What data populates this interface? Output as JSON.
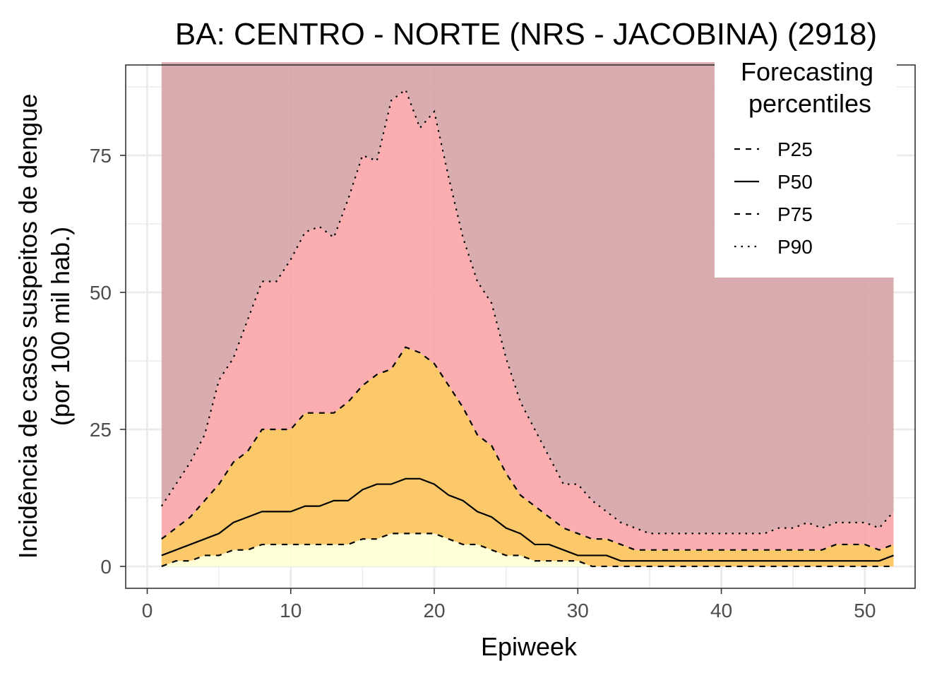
{
  "chart_data": {
    "type": "area",
    "title": "BA: CENTRO - NORTE (NRS - JACOBINA) (2918)",
    "xlabel": "Epiweek",
    "ylabel_line1": "Incidência de casos suspeitos de dengue",
    "ylabel_line2": "(por 100 mil hab.)",
    "xlim": [
      -1.5,
      53.5
    ],
    "ylim": [
      -4,
      91.5
    ],
    "x_ticks": [
      0,
      10,
      20,
      30,
      40,
      50
    ],
    "y_ticks": [
      0,
      25,
      50,
      75
    ],
    "grid": true,
    "legend": {
      "title_line1": "Forecasting",
      "title_line2": "percentiles",
      "position": "top-right",
      "entries": [
        "P25",
        "P50",
        "P75",
        "P90"
      ]
    },
    "bands": {
      "above_p90_top": 92,
      "colors": {
        "below_p25": "#ffffd4",
        "p25_p75": "#fcc35a",
        "p75_p90": "#fca4a6",
        "above_p90": "#d5a3a6"
      }
    },
    "x": [
      1,
      2,
      3,
      4,
      5,
      6,
      7,
      8,
      9,
      10,
      11,
      12,
      13,
      14,
      15,
      16,
      17,
      18,
      19,
      20,
      21,
      22,
      23,
      24,
      25,
      26,
      27,
      28,
      29,
      30,
      31,
      32,
      33,
      34,
      35,
      36,
      37,
      38,
      39,
      40,
      41,
      42,
      43,
      44,
      45,
      46,
      47,
      48,
      49,
      50,
      51,
      52
    ],
    "series": [
      {
        "name": "P25",
        "dash": "dashed",
        "values": [
          0,
          1,
          1,
          2,
          2,
          3,
          3,
          4,
          4,
          4,
          4,
          4,
          4,
          4,
          5,
          5,
          6,
          6,
          6,
          6,
          5,
          4,
          4,
          3,
          2,
          2,
          1,
          1,
          1,
          1,
          0,
          0,
          0,
          0,
          0,
          0,
          0,
          0,
          0,
          0,
          0,
          0,
          0,
          0,
          0,
          0,
          0,
          0,
          0,
          0,
          0,
          0
        ]
      },
      {
        "name": "P50",
        "dash": "solid",
        "values": [
          2,
          3,
          4,
          5,
          6,
          8,
          9,
          10,
          10,
          10,
          11,
          11,
          12,
          12,
          14,
          15,
          15,
          16,
          16,
          15,
          13,
          12,
          10,
          9,
          7,
          6,
          4,
          4,
          3,
          2,
          2,
          2,
          1,
          1,
          1,
          1,
          1,
          1,
          1,
          1,
          1,
          1,
          1,
          1,
          1,
          1,
          1,
          1,
          1,
          1,
          1,
          2
        ]
      },
      {
        "name": "P75",
        "dash": "dashed",
        "values": [
          5,
          7,
          9,
          12,
          15,
          19,
          21,
          25,
          25,
          25,
          28,
          28,
          28,
          30,
          33,
          35,
          36,
          40,
          39,
          37,
          33,
          29,
          24,
          22,
          17,
          13,
          11,
          9,
          7,
          6,
          5,
          5,
          4,
          3,
          3,
          3,
          3,
          3,
          3,
          3,
          3,
          3,
          3,
          3,
          3,
          3,
          3,
          4,
          4,
          4,
          3,
          4
        ]
      },
      {
        "name": "P90",
        "dash": "dotted",
        "values": [
          11,
          15,
          19,
          24,
          34,
          38,
          45,
          52,
          52,
          56,
          61,
          62,
          60,
          67,
          75,
          74,
          85,
          87,
          80,
          83,
          71,
          60,
          52,
          48,
          38,
          30,
          25,
          20,
          15,
          15,
          12,
          10,
          8,
          7,
          6,
          6,
          6,
          6,
          6,
          6,
          6,
          6,
          6,
          7,
          7,
          8,
          7,
          8,
          8,
          8,
          7,
          10
        ]
      }
    ]
  }
}
